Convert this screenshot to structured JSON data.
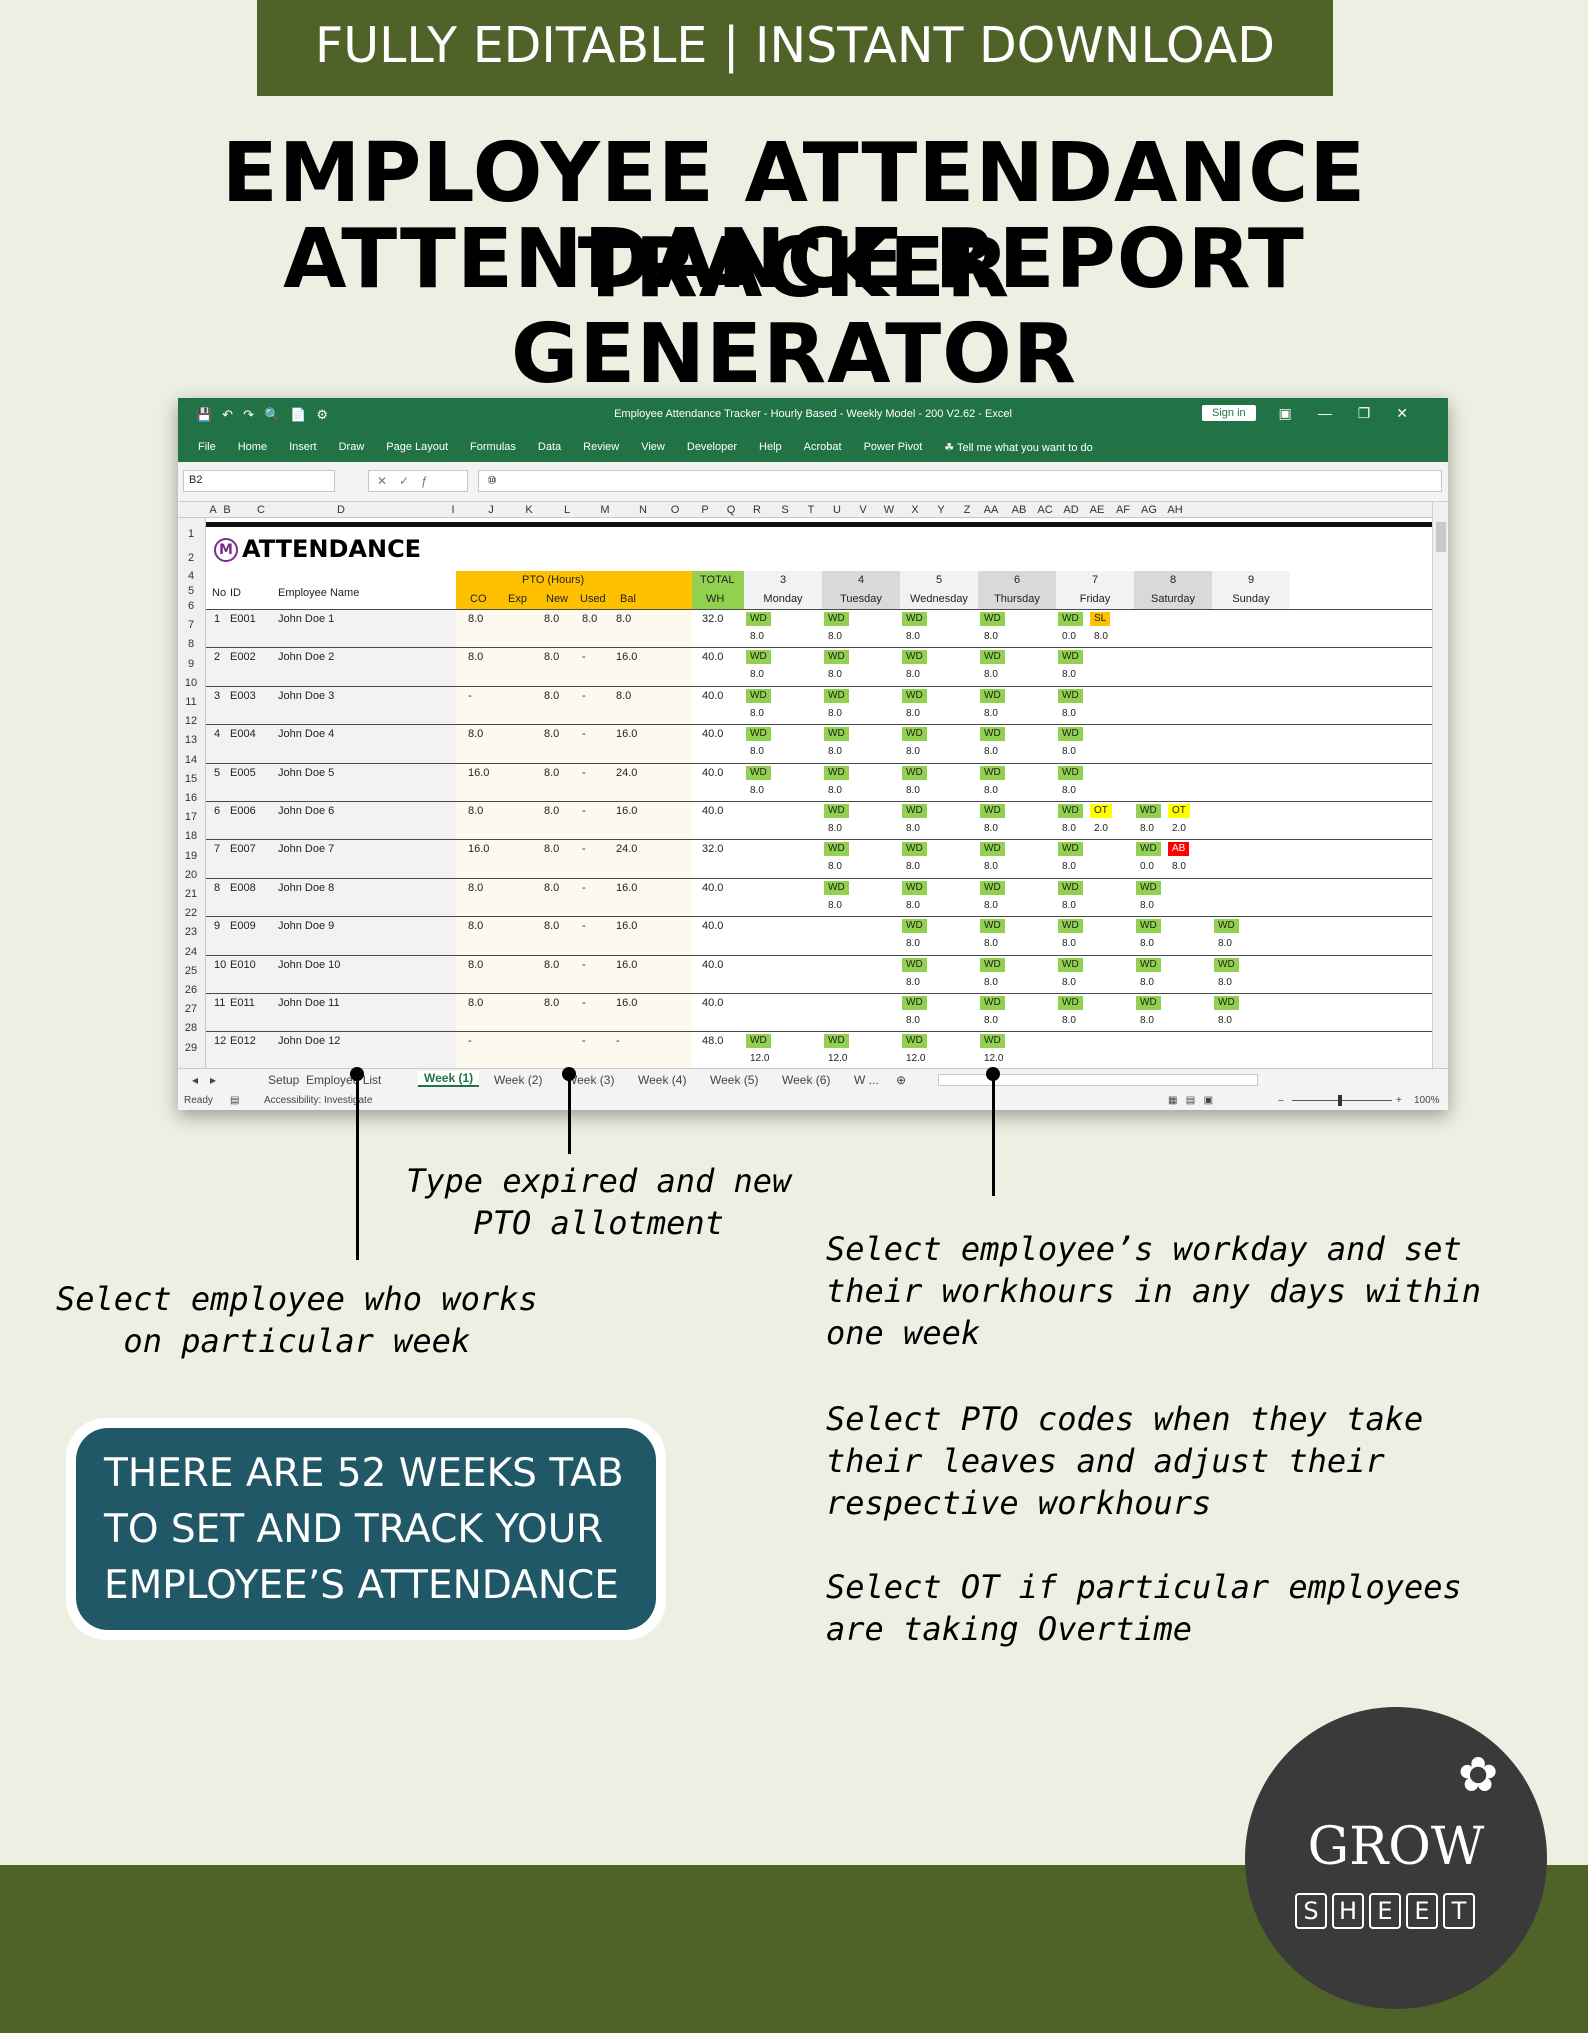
{
  "banner": "FULLY EDITABLE | INSTANT DOWNLOAD",
  "headline": {
    "line1": "EMPLOYEE ATTENDANCE TRACKER",
    "line2": "ATTENDANCE REPORT GENERATOR"
  },
  "excel": {
    "window_title": "Employee Attendance Tracker - Hourly Based - Weekly Model - 200 V2.62  -  Excel",
    "sign_in": "Sign in",
    "menu": [
      "File",
      "Home",
      "Insert",
      "Draw",
      "Page Layout",
      "Formulas",
      "Data",
      "Review",
      "View",
      "Developer",
      "Help",
      "Acrobat",
      "Power Pivot",
      "Tell me what you want to do"
    ],
    "name_box": "B2",
    "formula_value": "⑩",
    "columns": [
      "A",
      "B",
      "C",
      "D",
      "I",
      "J",
      "K",
      "L",
      "M",
      "N",
      "O",
      "P",
      "Q",
      "R",
      "S",
      "T",
      "U",
      "V",
      "W",
      "X",
      "Y",
      "Z",
      "AA",
      "AB",
      "AC",
      "AD",
      "AE",
      "AF",
      "AG",
      "AH"
    ],
    "row_numbers": [
      "1",
      "2",
      "4",
      "5",
      "6",
      "7",
      "8",
      "9",
      "10",
      "11",
      "12",
      "13",
      "14",
      "15",
      "16",
      "17",
      "18",
      "19",
      "20",
      "21",
      "22",
      "23",
      "24",
      "25",
      "26",
      "27",
      "28",
      "29"
    ],
    "sheet_title": "ATTENDANCE",
    "logo_letter": "M",
    "headers": {
      "no": "No",
      "id": "ID",
      "name": "Employee Name",
      "pto_group": "PTO (Hours)",
      "co": "CO",
      "exp": "Exp",
      "new": "New",
      "used": "Used",
      "bal": "Bal",
      "total": "TOTAL",
      "wh": "WH"
    },
    "days": [
      {
        "num": "3",
        "name": "Monday"
      },
      {
        "num": "4",
        "name": "Tuesday"
      },
      {
        "num": "5",
        "name": "Wednesday"
      },
      {
        "num": "6",
        "name": "Thursday"
      },
      {
        "num": "7",
        "name": "Friday"
      },
      {
        "num": "8",
        "name": "Saturday"
      },
      {
        "num": "9",
        "name": "Sunday"
      }
    ],
    "employees": [
      {
        "no": "1",
        "id": "E001",
        "name": "John Doe 1",
        "co": "8.0",
        "new": "8.0",
        "used": "8.0",
        "bal": "8.0",
        "wh": "32.0"
      },
      {
        "no": "2",
        "id": "E002",
        "name": "John Doe 2",
        "co": "8.0",
        "new": "8.0",
        "used": "-",
        "bal": "16.0",
        "wh": "40.0"
      },
      {
        "no": "3",
        "id": "E003",
        "name": "John Doe 3",
        "co": "-",
        "new": "8.0",
        "used": "-",
        "bal": "8.0",
        "wh": "40.0"
      },
      {
        "no": "4",
        "id": "E004",
        "name": "John Doe 4",
        "co": "8.0",
        "new": "8.0",
        "used": "-",
        "bal": "16.0",
        "wh": "40.0"
      },
      {
        "no": "5",
        "id": "E005",
        "name": "John Doe 5",
        "co": "16.0",
        "new": "8.0",
        "used": "-",
        "bal": "24.0",
        "wh": "40.0"
      },
      {
        "no": "6",
        "id": "E006",
        "name": "John Doe 6",
        "co": "8.0",
        "new": "8.0",
        "used": "-",
        "bal": "16.0",
        "wh": "40.0"
      },
      {
        "no": "7",
        "id": "E007",
        "name": "John Doe 7",
        "co": "16.0",
        "new": "8.0",
        "used": "-",
        "bal": "24.0",
        "wh": "32.0"
      },
      {
        "no": "8",
        "id": "E008",
        "name": "John Doe 8",
        "co": "8.0",
        "new": "8.0",
        "used": "-",
        "bal": "16.0",
        "wh": "40.0"
      },
      {
        "no": "9",
        "id": "E009",
        "name": "John Doe 9",
        "co": "8.0",
        "new": "8.0",
        "used": "-",
        "bal": "16.0",
        "wh": "40.0"
      },
      {
        "no": "10",
        "id": "E010",
        "name": "John Doe 10",
        "co": "8.0",
        "new": "8.0",
        "used": "-",
        "bal": "16.0",
        "wh": "40.0"
      },
      {
        "no": "11",
        "id": "E011",
        "name": "John Doe 11",
        "co": "8.0",
        "new": "8.0",
        "used": "-",
        "bal": "16.0",
        "wh": "40.0"
      },
      {
        "no": "12",
        "id": "E012",
        "name": "John Doe 12",
        "co": "-",
        "new": "",
        "used": "-",
        "bal": "-",
        "wh": "48.0"
      }
    ],
    "schedule": [
      {
        "d": [
          0,
          1,
          2,
          3,
          4
        ],
        "hours": "8.0",
        "extra": [
          {
            "day": 4,
            "code": "SL",
            "cls": "sl",
            "slot": 1,
            "hours": "8.0"
          }
        ],
        "override": {
          "4": "0.0"
        }
      },
      {
        "d": [
          0,
          1,
          2,
          3,
          4
        ],
        "hours": "8.0",
        "extra": [],
        "override": {}
      },
      {
        "d": [
          0,
          1,
          2,
          3,
          4
        ],
        "hours": "8.0",
        "extra": [],
        "override": {}
      },
      {
        "d": [
          0,
          1,
          2,
          3,
          4
        ],
        "hours": "8.0",
        "extra": [],
        "override": {}
      },
      {
        "d": [
          0,
          1,
          2,
          3,
          4
        ],
        "hours": "8.0",
        "extra": [],
        "override": {}
      },
      {
        "d": [
          1,
          2,
          3,
          4,
          5
        ],
        "hours": "8.0",
        "extra": [
          {
            "day": 4,
            "code": "OT",
            "cls": "ot",
            "slot": 1,
            "hours": "2.0"
          },
          {
            "day": 5,
            "code": "OT",
            "cls": "ot",
            "slot": 1,
            "hours": "2.0"
          }
        ],
        "override": {}
      },
      {
        "d": [
          1,
          2,
          3,
          4,
          5
        ],
        "hours": "8.0",
        "extra": [
          {
            "day": 5,
            "code": "AB",
            "cls": "ab",
            "slot": 1,
            "hours": "8.0"
          }
        ],
        "override": {
          "5": "0.0"
        }
      },
      {
        "d": [
          1,
          2,
          3,
          4,
          5
        ],
        "hours": "8.0",
        "extra": [],
        "override": {}
      },
      {
        "d": [
          2,
          3,
          4,
          5,
          6
        ],
        "hours": "8.0",
        "extra": [],
        "override": {}
      },
      {
        "d": [
          2,
          3,
          4,
          5,
          6
        ],
        "hours": "8.0",
        "extra": [],
        "override": {}
      },
      {
        "d": [
          2,
          3,
          4,
          5,
          6
        ],
        "hours": "8.0",
        "extra": [],
        "override": {}
      },
      {
        "d": [
          0,
          1,
          2,
          3
        ],
        "hours": "12.0",
        "extra": [],
        "override": {}
      }
    ],
    "wd_code": "WD",
    "tabs": [
      "Setup",
      "Employee List",
      "Week (1)",
      "Week (2)",
      "Week (3)",
      "Week (4)",
      "Week (5)",
      "Week (6)",
      "W ..."
    ],
    "status_ready": "Ready",
    "status_accessibility": "Accessibility: Investigate",
    "zoom": "100%"
  },
  "callouts": {
    "pto": [
      "Type expired and new",
      "PTO allotment"
    ],
    "employee": [
      "Select employee who works",
      "on particular week"
    ],
    "workday": [
      "Select employee’s workday and set",
      "their workhours in any days within",
      "one week"
    ],
    "pto_codes": [
      "Select PTO codes when they take",
      "their leaves and adjust their",
      "respective workhours"
    ],
    "ot": [
      "Select OT if particular employees",
      "are taking Overtime"
    ]
  },
  "weeks_box": [
    "THERE ARE 52 WEEKS TAB",
    "TO SET AND TRACK YOUR",
    "EMPLOYEE’S ATTENDANCE"
  ],
  "brand": {
    "grow": "GROW",
    "sheet": [
      "S",
      "H",
      "E",
      "E",
      "T"
    ]
  },
  "colors": {
    "green": "#4f6228",
    "excel_green": "#217346",
    "teal": "#215868",
    "wd": "#92d050",
    "orange": "#ffc000"
  }
}
